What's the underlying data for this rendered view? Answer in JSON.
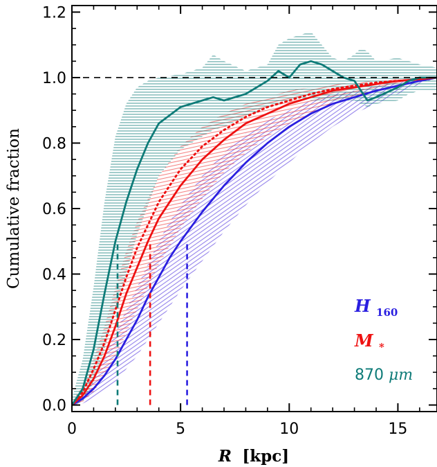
{
  "chart_data": {
    "type": "line",
    "xlabel_symbol": "R",
    "xlabel_unit": "[kpc]",
    "ylabel": "Cumulative fraction",
    "xlim": [
      0,
      16.8
    ],
    "ylim": [
      -0.02,
      1.22
    ],
    "x_ticks": [
      "0",
      "5",
      "10",
      "15"
    ],
    "x_tick_values": [
      0,
      5,
      10,
      15
    ],
    "y_ticks": [
      "0.0",
      "0.2",
      "0.4",
      "0.6",
      "0.8",
      "1.0",
      "1.2"
    ],
    "y_tick_values": [
      0,
      0.2,
      0.4,
      0.6,
      0.8,
      1.0,
      1.2
    ],
    "reference_line_y": 1.0,
    "colors": {
      "H160": "#2a1fe0",
      "Mstar": "#ee1111",
      "mm870": "#0e7b78"
    },
    "legend": [
      {
        "key": "H160",
        "main": "H",
        "sub": "160",
        "color": "#2a1fe0"
      },
      {
        "key": "Mstar",
        "main": "M",
        "sub": "*",
        "color": "#ee1111"
      },
      {
        "key": "mm870",
        "main": "870",
        "unit": "μm",
        "color": "#0e7b78"
      }
    ],
    "half_light_radii": [
      {
        "key": "mm870",
        "x": 2.1,
        "y": 0.5
      },
      {
        "key": "Mstar",
        "x": 3.6,
        "y": 0.5
      },
      {
        "key": "H160",
        "x": 5.3,
        "y": 0.5
      }
    ],
    "series": [
      {
        "key": "mm870",
        "x": [
          0,
          0.5,
          1.0,
          1.5,
          2.0,
          2.5,
          3.0,
          3.5,
          4.0,
          5.0,
          6.0,
          6.5,
          7.0,
          8.0,
          9.0,
          9.5,
          10.0,
          10.5,
          11.0,
          11.5,
          12.0,
          12.5,
          13.0,
          13.3,
          13.6,
          14.0,
          15.0,
          15.5,
          16.0,
          16.8
        ],
        "y": [
          0,
          0.05,
          0.17,
          0.34,
          0.5,
          0.62,
          0.72,
          0.8,
          0.86,
          0.91,
          0.93,
          0.94,
          0.93,
          0.95,
          0.99,
          1.02,
          1.0,
          1.04,
          1.05,
          1.04,
          1.02,
          1.0,
          0.99,
          0.96,
          0.93,
          0.94,
          0.97,
          0.99,
          1.0,
          1.0
        ],
        "upper": [
          0.02,
          0.14,
          0.36,
          0.62,
          0.82,
          0.92,
          0.97,
          0.99,
          1.0,
          1.01,
          1.03,
          1.07,
          1.05,
          1.02,
          1.04,
          1.1,
          1.12,
          1.13,
          1.14,
          1.1,
          1.06,
          1.05,
          1.07,
          1.09,
          1.08,
          1.05,
          1.06,
          1.05,
          1.04,
          1.03
        ],
        "lower": [
          0,
          0.01,
          0.07,
          0.17,
          0.29,
          0.4,
          0.52,
          0.61,
          0.7,
          0.78,
          0.82,
          0.84,
          0.85,
          0.88,
          0.91,
          0.92,
          0.93,
          0.94,
          0.93,
          0.93,
          0.93,
          0.93,
          0.93,
          0.92,
          0.91,
          0.92,
          0.93,
          0.95,
          0.96,
          0.96
        ]
      },
      {
        "key": "Mstar",
        "x": [
          0,
          0.5,
          1.0,
          1.5,
          2.0,
          2.5,
          3.0,
          3.5,
          4.0,
          5.0,
          6.0,
          7.0,
          8.0,
          9.0,
          10.0,
          11.0,
          12.0,
          13.0,
          14.0,
          15.0,
          16.0,
          16.8
        ],
        "y": [
          0,
          0.03,
          0.08,
          0.15,
          0.24,
          0.34,
          0.42,
          0.5,
          0.57,
          0.67,
          0.75,
          0.81,
          0.86,
          0.89,
          0.92,
          0.94,
          0.96,
          0.97,
          0.98,
          0.99,
          0.995,
          1.0
        ],
        "upper": [
          0.01,
          0.06,
          0.14,
          0.24,
          0.36,
          0.47,
          0.56,
          0.63,
          0.7,
          0.79,
          0.85,
          0.89,
          0.92,
          0.94,
          0.96,
          0.97,
          0.98,
          0.985,
          0.99,
          0.995,
          1.0,
          1.0
        ],
        "lower": [
          0,
          0.01,
          0.04,
          0.09,
          0.15,
          0.22,
          0.29,
          0.36,
          0.43,
          0.54,
          0.63,
          0.71,
          0.77,
          0.82,
          0.86,
          0.89,
          0.92,
          0.94,
          0.96,
          0.975,
          0.99,
          1.0
        ],
        "dotted_x": [
          0,
          0.5,
          1.0,
          1.5,
          2.0,
          2.5,
          3.0,
          3.5,
          4.0,
          5.0,
          6.0,
          7.0,
          8.0,
          9.0,
          10.0,
          11.0,
          12.0,
          13.0,
          14.0,
          15.0,
          16.0,
          16.8
        ],
        "dotted_y": [
          0,
          0.04,
          0.11,
          0.19,
          0.29,
          0.39,
          0.48,
          0.55,
          0.62,
          0.72,
          0.79,
          0.84,
          0.88,
          0.91,
          0.93,
          0.95,
          0.965,
          0.975,
          0.985,
          0.99,
          0.995,
          1.0
        ]
      },
      {
        "key": "H160",
        "x": [
          0,
          0.5,
          1.0,
          1.5,
          2.0,
          2.5,
          3.0,
          3.5,
          4.0,
          4.5,
          5.0,
          6.0,
          7.0,
          8.0,
          9.0,
          10.0,
          11.0,
          12.0,
          13.0,
          14.0,
          15.0,
          16.0,
          16.8
        ],
        "y": [
          0,
          0.02,
          0.05,
          0.09,
          0.14,
          0.2,
          0.26,
          0.33,
          0.39,
          0.45,
          0.5,
          0.59,
          0.67,
          0.74,
          0.8,
          0.85,
          0.89,
          0.92,
          0.94,
          0.96,
          0.975,
          0.99,
          1.0
        ],
        "upper": [
          0.01,
          0.04,
          0.09,
          0.15,
          0.22,
          0.29,
          0.36,
          0.43,
          0.5,
          0.56,
          0.61,
          0.7,
          0.77,
          0.83,
          0.87,
          0.9,
          0.93,
          0.95,
          0.96,
          0.975,
          0.985,
          0.995,
          1.0
        ],
        "lower": [
          0,
          0.005,
          0.02,
          0.04,
          0.07,
          0.11,
          0.15,
          0.2,
          0.25,
          0.3,
          0.35,
          0.44,
          0.53,
          0.61,
          0.68,
          0.74,
          0.8,
          0.85,
          0.89,
          0.92,
          0.95,
          0.98,
          1.0
        ]
      }
    ]
  }
}
